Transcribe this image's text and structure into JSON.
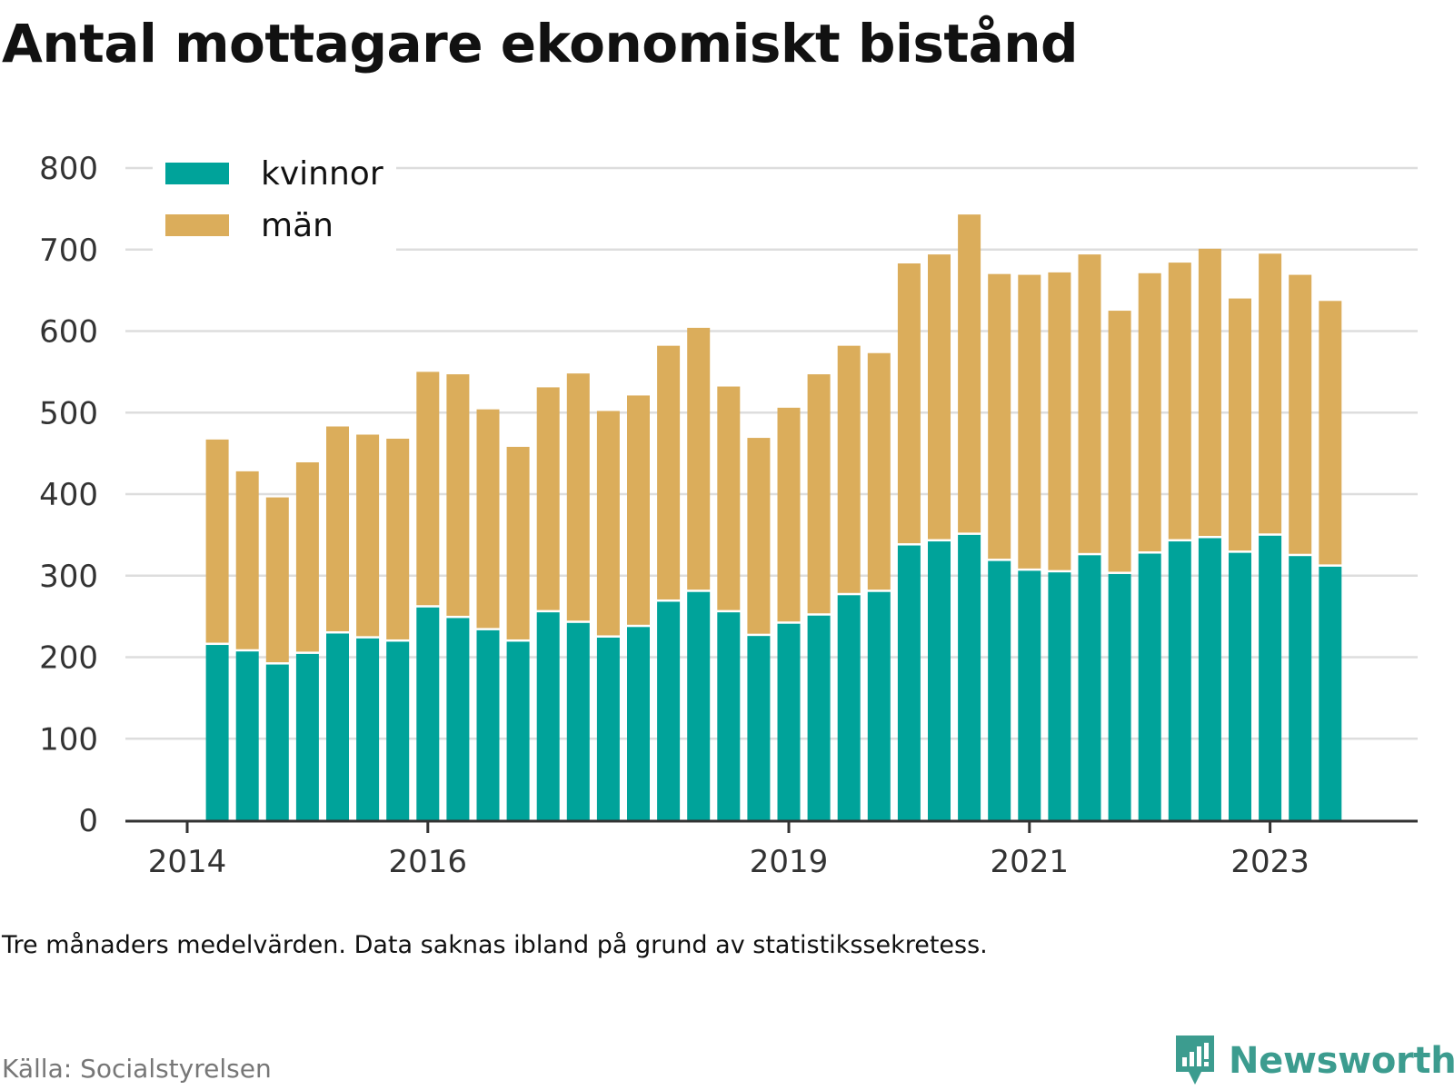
{
  "title": "Antal mottagare ekonomiskt bistånd",
  "note": "Tre månaders medelvärden. Data saknas ibland på grund av statistikssekretess.",
  "source": "Källa: Socialstyrelsen",
  "brand": "Newsworthy",
  "colors": {
    "kvinnor": "#00a39a",
    "man": "#dbad5b",
    "grid": "#dddddd",
    "axis": "#333333",
    "brand": "#3c9c8f"
  },
  "chart_data": {
    "type": "bar",
    "stacked": true,
    "x_unit": "quarter",
    "x": [
      "2014Q2",
      "2014Q3",
      "2014Q4",
      "2015Q1",
      "2015Q2",
      "2015Q3",
      "2015Q4",
      "2016Q1",
      "2016Q2",
      "2016Q3",
      "2016Q4",
      "2017Q1",
      "2017Q2",
      "2017Q3",
      "2017Q4",
      "2018Q1",
      "2018Q2",
      "2018Q3",
      "2018Q4",
      "2019Q1",
      "2019Q2",
      "2019Q3",
      "2019Q4",
      "2020Q1",
      "2020Q2",
      "2020Q3",
      "2020Q4",
      "2021Q1",
      "2021Q2",
      "2021Q3",
      "2021Q4",
      "2022Q1",
      "2022Q2",
      "2022Q3",
      "2022Q4",
      "2023Q1",
      "2023Q2",
      "2023Q3"
    ],
    "series": [
      {
        "name": "kvinnor",
        "values": [
          215,
          207,
          191,
          204,
          229,
          223,
          219,
          261,
          248,
          233,
          219,
          255,
          242,
          224,
          237,
          268,
          280,
          255,
          226,
          241,
          251,
          276,
          280,
          337,
          342,
          350,
          318,
          306,
          304,
          325,
          302,
          327,
          342,
          346,
          328,
          349,
          324,
          311
        ]
      },
      {
        "name": "män",
        "values": [
          252,
          221,
          205,
          235,
          254,
          250,
          249,
          289,
          299,
          271,
          239,
          276,
          306,
          278,
          284,
          314,
          324,
          277,
          243,
          265,
          296,
          306,
          293,
          346,
          352,
          393,
          352,
          363,
          368,
          369,
          323,
          344,
          342,
          355,
          312,
          346,
          345,
          326
        ]
      }
    ],
    "xticks": [
      "2014",
      "2016",
      "2019",
      "2021",
      "2023"
    ],
    "xtick_positions": [
      "2014Q1",
      "2016Q1",
      "2019Q1",
      "2021Q1",
      "2023Q1"
    ],
    "yticks": [
      0,
      100,
      200,
      300,
      400,
      500,
      600,
      700,
      800
    ],
    "ylim": [
      0,
      800
    ],
    "legend": [
      "kvinnor",
      "män"
    ],
    "legend_position": "top-left",
    "grid": true
  }
}
